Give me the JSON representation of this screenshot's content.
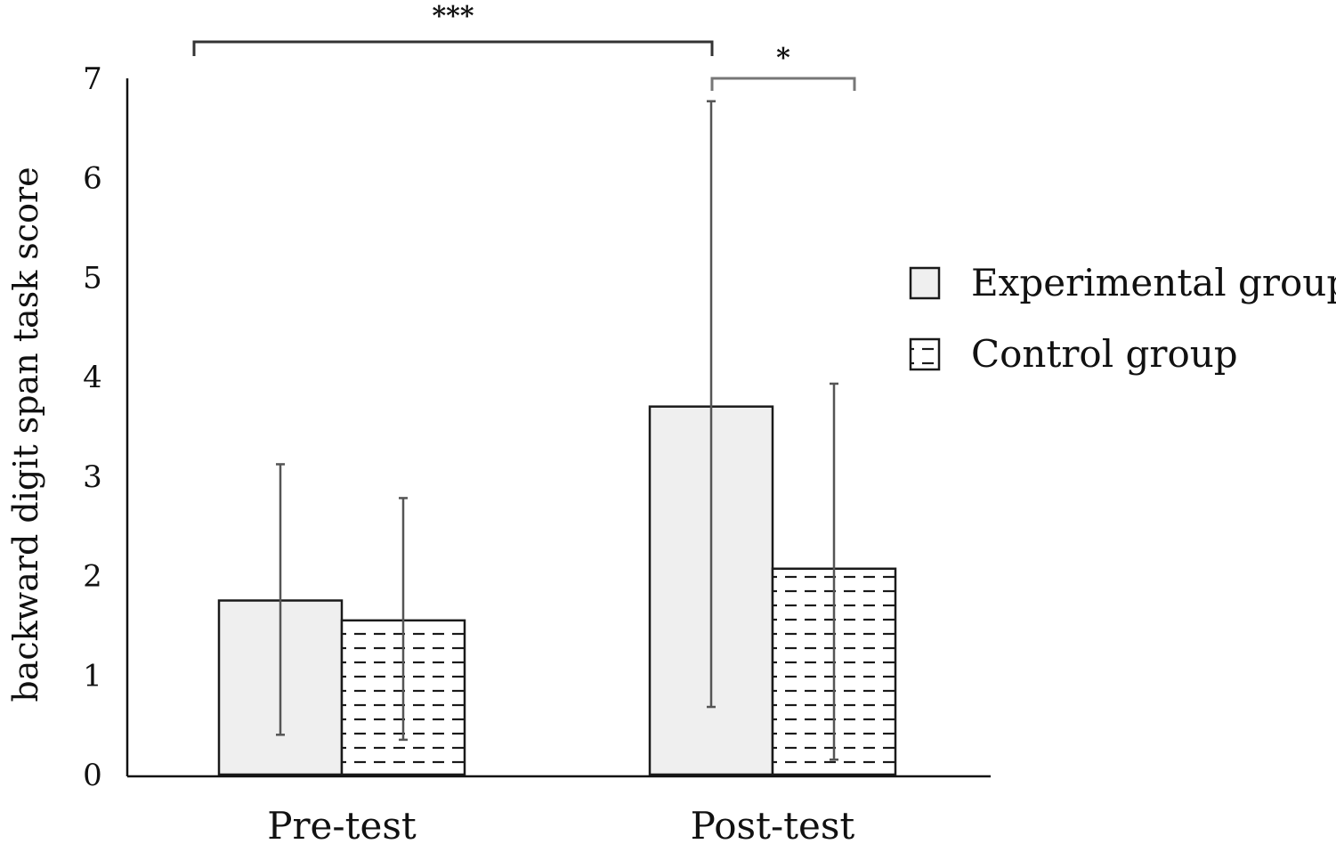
{
  "chart_data": {
    "type": "bar",
    "categories": [
      "Pre-test",
      "Post-test"
    ],
    "ylabel": "backward digit span task score",
    "xlabel": "",
    "ylim": [
      0,
      7
    ],
    "yticks": [
      "0",
      "1",
      "2",
      "3",
      "4",
      "5",
      "6",
      "7"
    ],
    "grid": false,
    "legend_position": "right",
    "series": [
      {
        "name": "Experimental group",
        "pattern": "solid-light-gray",
        "values": [
          1.75,
          3.7
        ],
        "error_low": [
          0.4,
          0.68
        ],
        "error_high": [
          3.12,
          6.77
        ]
      },
      {
        "name": "Control group",
        "pattern": "dashed-horizontal",
        "values": [
          1.55,
          2.07
        ],
        "error_low": [
          0.35,
          0.15
        ],
        "error_high": [
          2.78,
          3.93
        ]
      }
    ],
    "significance": [
      {
        "label": "***"
      },
      {
        "label": "*"
      }
    ],
    "colors": {
      "experimental_fill": "#efefef",
      "control_fill": "#ffffff",
      "bar_stroke": "#1a1a1a",
      "error_bar": "#555555",
      "axis": "#111111"
    }
  }
}
